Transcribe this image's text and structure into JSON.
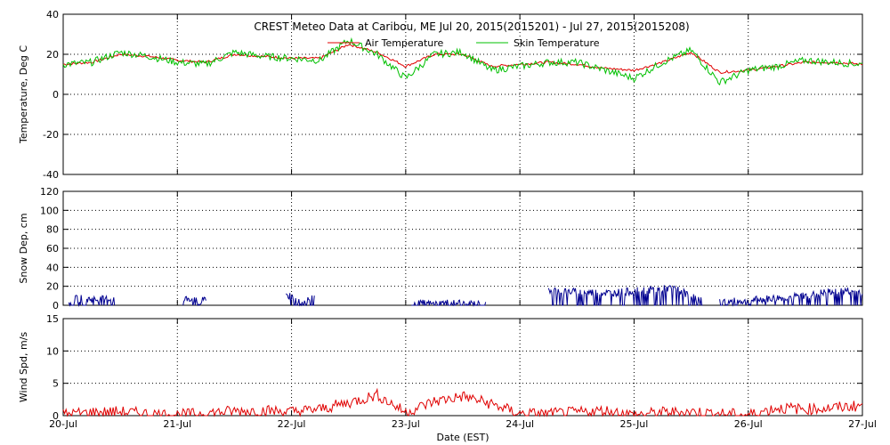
{
  "chart_data": [
    {
      "type": "line",
      "title": "CREST Meteo Data at Caribou, ME   Jul 20, 2015(2015201) - Jul 27, 2015(2015208)",
      "ylabel": "Temperature, Deg C",
      "ylim": [
        -40,
        40
      ],
      "yticks": [
        -40,
        -20,
        0,
        20,
        40
      ],
      "legend_position": "top-center",
      "grid": true,
      "x_time": [
        0,
        0.25,
        0.5,
        0.75,
        1.0,
        1.25,
        1.5,
        1.75,
        2.0,
        2.25,
        2.5,
        2.75,
        3.0,
        3.25,
        3.5,
        3.75,
        4.0,
        4.25,
        4.5,
        4.75,
        5.0,
        5.25,
        5.5,
        5.75,
        6.0,
        6.25,
        6.5,
        6.75,
        7.0
      ],
      "series": [
        {
          "name": "Air Temperature",
          "color": "#e00000",
          "values": [
            15,
            16,
            20,
            19,
            17,
            16,
            20,
            19,
            18,
            18,
            25,
            21,
            14,
            20,
            20,
            14,
            15,
            16,
            15,
            13,
            12,
            16,
            21,
            11,
            12,
            14,
            16,
            16,
            15
          ]
        },
        {
          "name": "Skin Temperature",
          "color": "#00c000",
          "values": [
            15,
            16,
            21,
            19,
            16,
            15,
            21,
            19,
            18,
            17,
            27,
            20,
            8,
            20,
            21,
            12,
            14,
            16,
            16,
            12,
            8,
            16,
            22,
            6,
            12,
            14,
            17,
            16,
            15
          ]
        }
      ]
    },
    {
      "type": "line",
      "ylabel": "Snow Dep, cm",
      "ylim": [
        0,
        120
      ],
      "yticks": [
        0,
        20,
        40,
        60,
        80,
        100,
        120
      ],
      "grid": true,
      "series": [
        {
          "color": "#000090",
          "segments": [
            {
              "x": [
                0.05,
                0.15,
                0.3,
                0.45
              ],
              "values": [
                6,
                7,
                6,
                7
              ]
            },
            {
              "x": [
                1.05,
                1.1,
                1.2,
                1.25
              ],
              "values": [
                5,
                8,
                2,
                8
              ]
            },
            {
              "x": [
                1.95,
                2.0,
                2.1,
                2.2
              ],
              "values": [
                12,
                8,
                3,
                9
              ]
            },
            {
              "x": [
                3.05,
                3.15,
                3.25,
                3.4,
                3.55,
                3.7
              ],
              "values": [
                0,
                2,
                1,
                3,
                2,
                0
              ]
            },
            {
              "x": [
                4.25,
                4.5,
                4.8,
                5.1,
                5.35,
                5.6
              ],
              "values": [
                16,
                14,
                13,
                16,
                18,
                4
              ]
            },
            {
              "x": [
                5.75,
                5.9,
                6.1,
                6.3,
                6.5,
                6.7,
                6.85,
                7.0
              ],
              "values": [
                3,
                4,
                6,
                8,
                10,
                14,
                15,
                14
              ]
            }
          ]
        }
      ]
    },
    {
      "type": "line",
      "ylabel": "Wind Spd, m/s",
      "xlabel": "Date (EST)",
      "ylim": [
        0,
        15
      ],
      "yticks": [
        0,
        5,
        10,
        15
      ],
      "grid": true,
      "xlim": [
        0,
        7
      ],
      "xticks": [
        0,
        1,
        2,
        3,
        4,
        5,
        6,
        7
      ],
      "xtick_labels": [
        "20-Jul",
        "21-Jul",
        "22-Jul",
        "23-Jul",
        "24-Jul",
        "25-Jul",
        "26-Jul",
        "27-Jul"
      ],
      "series": [
        {
          "color": "#e00000",
          "x": [
            0,
            0.25,
            0.5,
            0.75,
            1.0,
            1.25,
            1.5,
            1.75,
            2.0,
            2.25,
            2.5,
            2.75,
            3.0,
            3.25,
            3.5,
            3.75,
            4.0,
            4.25,
            4.5,
            4.75,
            5.0,
            5.25,
            5.5,
            5.75,
            6.0,
            6.25,
            6.5,
            6.75,
            7.0
          ],
          "values": [
            0.2,
            0.5,
            0.6,
            0.3,
            0.1,
            0.4,
            0.7,
            0.8,
            0.6,
            1.0,
            2.0,
            3.2,
            0.5,
            2.2,
            3.0,
            1.8,
            0.3,
            0.3,
            0.5,
            0.8,
            0.1,
            0.5,
            0.6,
            0.3,
            0.1,
            1.2,
            1.0,
            1.2,
            1.6
          ]
        }
      ]
    }
  ]
}
